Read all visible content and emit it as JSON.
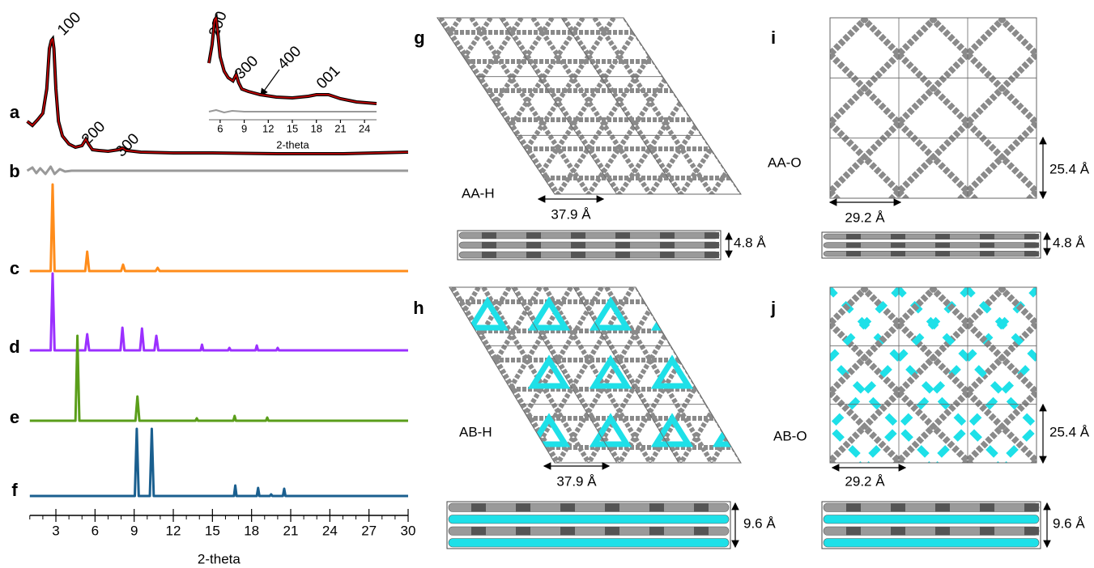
{
  "chart_data": [
    {
      "type": "line",
      "xlabel": "2-theta",
      "xlim": [
        1,
        30
      ],
      "xticks": [
        3,
        6,
        9,
        12,
        15,
        18,
        21,
        24,
        27,
        30
      ],
      "xminorticks": [
        1,
        2,
        4,
        5,
        7,
        8,
        10,
        11,
        13,
        14,
        16,
        17,
        19,
        20,
        22,
        23,
        25,
        26,
        28,
        29
      ],
      "annotations": [
        "100",
        "200",
        "300"
      ],
      "series": [
        {
          "name": "a",
          "color": "#c00000",
          "x": [
            0.8,
            1.2,
            1.6,
            2.0,
            2.3,
            2.5,
            2.65,
            2.75,
            2.85,
            3.0,
            3.2,
            3.5,
            4.0,
            4.5,
            5.0,
            5.3,
            5.5,
            5.8,
            6.3,
            7.0,
            7.8,
            8.1,
            8.4,
            9.5,
            12,
            15,
            20,
            25,
            30
          ],
          "values": [
            40,
            35,
            42,
            50,
            80,
            130,
            140,
            142,
            130,
            80,
            40,
            22,
            12,
            8,
            10,
            18,
            12,
            5,
            4,
            3,
            5,
            7,
            4,
            2,
            1,
            1,
            0,
            0,
            2
          ]
        },
        {
          "name": "b",
          "color": "#999999",
          "x": [
            0.8,
            1.2,
            1.5,
            1.8,
            2.2,
            2.6,
            2.9,
            3.3,
            3.7,
            4.2,
            30
          ],
          "values": [
            0,
            4,
            -3,
            3,
            -4,
            5,
            -4,
            2,
            -1,
            0,
            0
          ]
        },
        {
          "name": "c",
          "color": "#ff8c1a",
          "x": [
            1,
            2.6,
            2.75,
            2.9,
            5.25,
            5.4,
            5.55,
            8.0,
            8.15,
            8.3,
            10.65,
            10.8,
            10.95,
            30
          ],
          "values": [
            0,
            0,
            107,
            0,
            0,
            24,
            0,
            0,
            8,
            0,
            0,
            4,
            0,
            0
          ]
        },
        {
          "name": "d",
          "color": "#9b30ff",
          "x": [
            1,
            2.6,
            2.75,
            2.9,
            5.25,
            5.4,
            5.55,
            7.95,
            8.1,
            8.25,
            9.45,
            9.6,
            9.75,
            10.55,
            10.7,
            10.85,
            14.1,
            14.2,
            14.3,
            16.2,
            16.3,
            16.4,
            18.3,
            18.4,
            18.5,
            19.9,
            20.0,
            20.1,
            30
          ],
          "values": [
            0,
            0,
            95,
            0,
            0,
            20,
            0,
            0,
            28,
            0,
            0,
            27,
            0,
            0,
            18,
            0,
            0,
            7,
            0,
            0,
            3,
            0,
            0,
            6,
            0,
            0,
            3,
            0,
            0
          ]
        },
        {
          "name": "e",
          "color": "#5a9e1a",
          "x": [
            1,
            4.5,
            4.65,
            4.8,
            9.1,
            9.25,
            9.4,
            13.7,
            13.8,
            13.9,
            16.6,
            16.7,
            16.8,
            19.1,
            19.2,
            19.3,
            30
          ],
          "values": [
            0,
            0,
            105,
            0,
            0,
            30,
            0,
            0,
            3,
            0,
            0,
            6,
            0,
            0,
            4,
            0,
            0
          ]
        },
        {
          "name": "f",
          "color": "#1a5f8f",
          "x": [
            1,
            9.05,
            9.2,
            9.35,
            10.2,
            10.35,
            10.5,
            16.65,
            16.75,
            16.85,
            18.4,
            18.5,
            18.6,
            19.4,
            19.5,
            19.6,
            20.4,
            20.5,
            20.6,
            30
          ],
          "values": [
            0,
            0,
            83,
            0,
            0,
            83,
            0,
            0,
            13,
            0,
            0,
            10,
            0,
            0,
            2,
            0,
            0,
            9,
            0,
            0
          ]
        }
      ]
    },
    {
      "type": "line",
      "xlabel": "2-theta",
      "xlim": [
        4.6,
        25.5
      ],
      "xticks": [
        6,
        9,
        12,
        15,
        18,
        21,
        24
      ],
      "annotations": [
        "200",
        "300",
        "400",
        "001"
      ],
      "series": [
        {
          "color": "#c00000",
          "x": [
            4.6,
            5.0,
            5.3,
            5.5,
            5.7,
            6.0,
            6.5,
            7.0,
            7.6,
            8.0,
            8.3,
            8.7,
            9.5,
            11,
            13,
            15,
            17,
            18,
            19.5,
            21,
            23,
            25.5
          ],
          "values": [
            52,
            75,
            105,
            108,
            90,
            60,
            42,
            34,
            30,
            38,
            28,
            20,
            17,
            13,
            10,
            9,
            11,
            13,
            13,
            8,
            4,
            2
          ]
        },
        {
          "color": "#999999",
          "x": [
            4.6,
            5.5,
            6.5,
            7.5,
            9,
            25.5
          ],
          "values": [
            0,
            2,
            -1,
            1,
            0,
            0
          ]
        }
      ]
    }
  ],
  "structures": [
    {
      "label": "g",
      "name": "AA-H",
      "width": "37.9 Å",
      "height": "4.8 Å"
    },
    {
      "label": "h",
      "name": "AB-H",
      "width": "37.9 Å",
      "height": "9.6 Å"
    },
    {
      "label": "i",
      "name": "AA-O",
      "width": "29.2 Å",
      "cell": "25.4 Å",
      "height": "4.8 Å"
    },
    {
      "label": "j",
      "name": "AB-O",
      "width": "29.2 Å",
      "cell": "25.4 Å",
      "height": "9.6 Å"
    }
  ]
}
